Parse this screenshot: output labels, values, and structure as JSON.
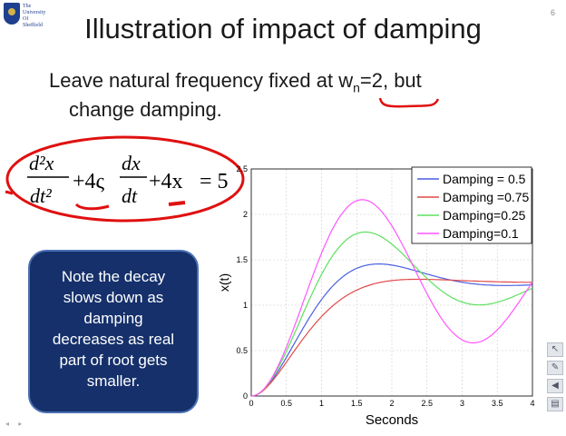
{
  "logo": {
    "text": "The\nUniversity\nOf\nSheffield"
  },
  "slide_number": "6",
  "title": "Illustration of impact of damping",
  "subtitle": {
    "line1_prefix": "Leave natural frequency fixed at w",
    "subscript": "n",
    "line1_suffix": "=2, but",
    "line2": "change damping."
  },
  "equation": {
    "num1": "d²x",
    "den1": "dt²",
    "plus1": "+4ς",
    "num2": "dx",
    "den2": "dt",
    "plus2": "+4x",
    "rhs": "= 5"
  },
  "note": {
    "text": "Note the decay\nslows down as\ndamping\ndecreases as real\npart of root gets\nsmaller."
  },
  "colors": {
    "annotation_red": "#e01010",
    "note_bg": "#15306b"
  },
  "chart_data": {
    "type": "line",
    "xlabel": "Seconds",
    "ylabel": "x(t)",
    "xlim": [
      0,
      4
    ],
    "ylim": [
      0,
      2.5
    ],
    "xticks": [
      "0",
      "0.5",
      "1",
      "1.5",
      "2",
      "2.5",
      "3",
      "3.5",
      "4"
    ],
    "yticks": [
      "0",
      "0.5",
      "1",
      "1.5",
      "2",
      "2.5"
    ],
    "grid": true,
    "legend_position": "top-right",
    "series": [
      {
        "name": "Damping = 0.5",
        "zeta": 0.5,
        "color": "#4a5ee0"
      },
      {
        "name": "Damping =0.75",
        "zeta": 0.75,
        "color": "#e04a4a"
      },
      {
        "name": "Damping=0.25",
        "zeta": 0.25,
        "color": "#5ee05e"
      },
      {
        "name": "Damping=0.1",
        "zeta": 0.1,
        "color": "#ff55ff"
      }
    ]
  }
}
